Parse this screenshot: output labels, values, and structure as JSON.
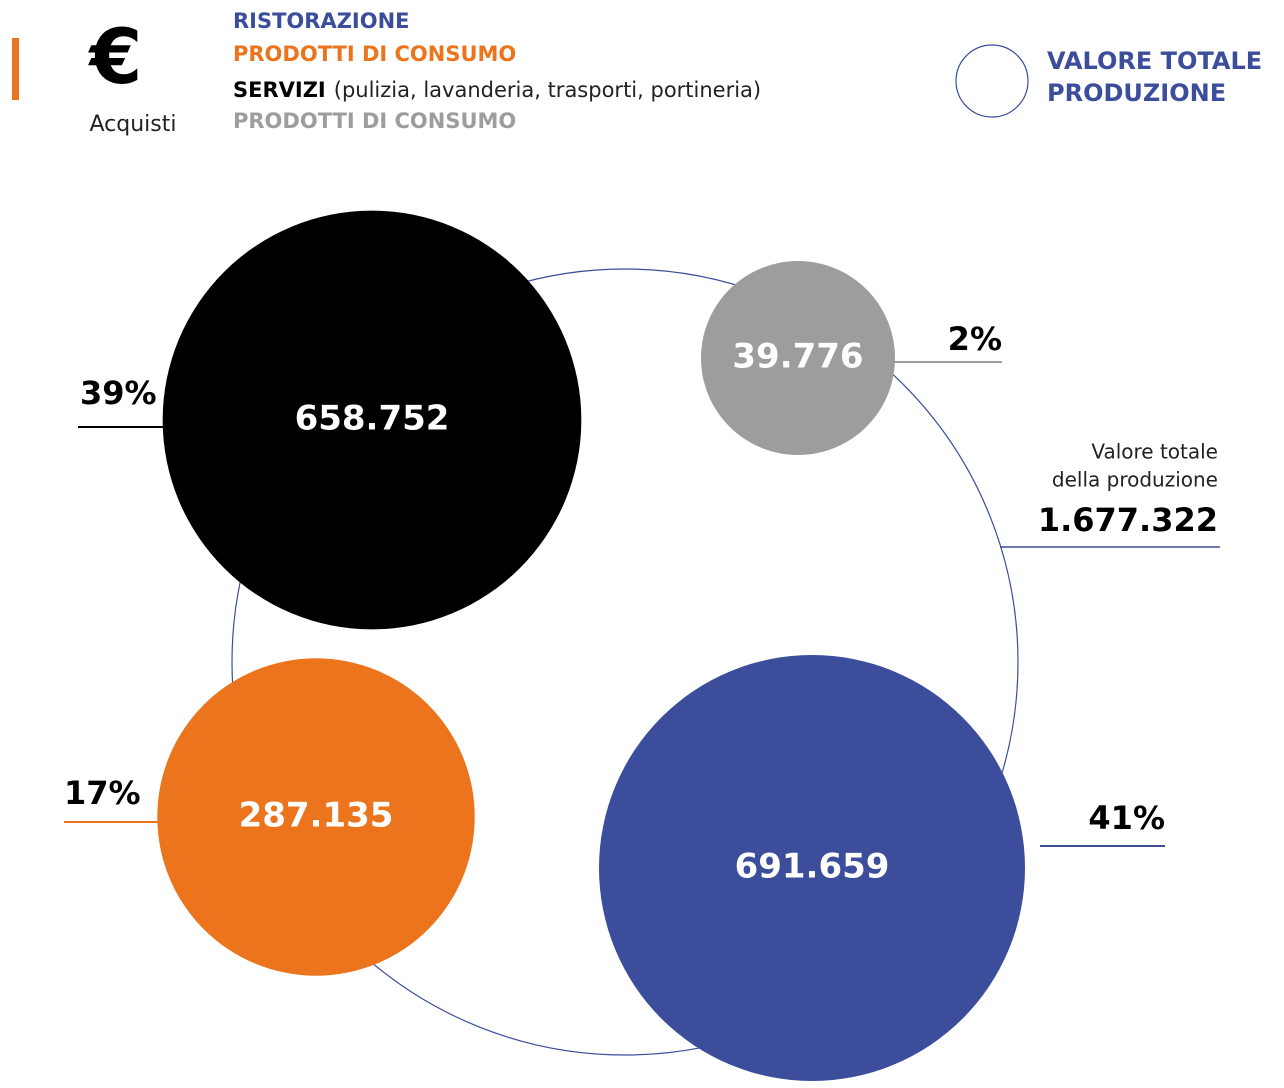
{
  "chart_data": {
    "type": "bubble",
    "header": {
      "icon": "€",
      "label": "Acquisti"
    },
    "series": [
      {
        "name": "RISTORAZIONE",
        "color": "#3b4d9b",
        "value": 691659,
        "value_label": "691.659",
        "percent": 41,
        "percent_label": "41%"
      },
      {
        "name": "PRODOTTI DI CONSUMO",
        "color": "#ec741d",
        "value": 287135,
        "value_label": "287.135",
        "percent": 17,
        "percent_label": "17%"
      },
      {
        "name": "SERVIZI",
        "detail": "(pulizia, lavanderia, trasporti, portineria)",
        "color": "#000000",
        "value": 658752,
        "value_label": "658.752",
        "percent": 39,
        "percent_label": "39%"
      },
      {
        "name": "PRODOTTI DI CONSUMO",
        "color": "#9d9d9c",
        "value": 39776,
        "value_label": "39.776",
        "percent": 2,
        "percent_label": "2%"
      }
    ],
    "total": {
      "legend": [
        "VALORE TOTALE",
        "PRODUZIONE"
      ],
      "caption": [
        "Valore totale",
        "della produzione"
      ],
      "value": 1677322,
      "value_label": "1.677.322",
      "color": "#3b4d9b"
    }
  }
}
